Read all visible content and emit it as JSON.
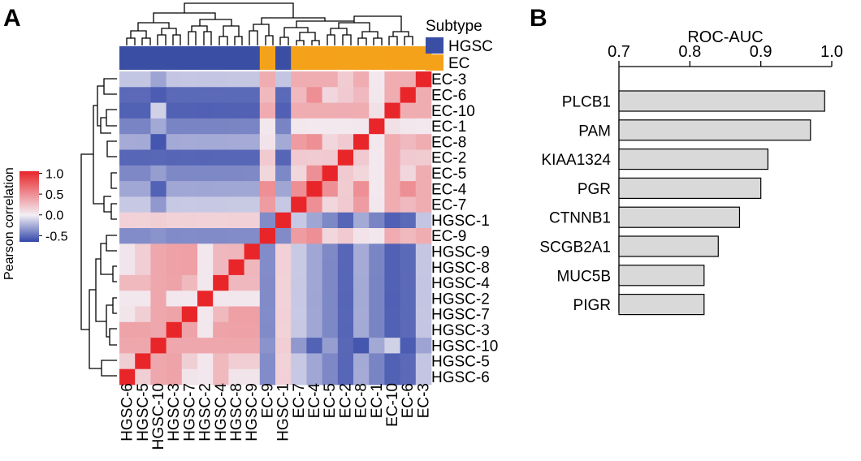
{
  "panels": {
    "a": "A",
    "b": "B"
  },
  "heatmap": {
    "type": "heatmap",
    "rows": [
      "EC-3",
      "EC-6",
      "EC-10",
      "EC-1",
      "EC-8",
      "EC-2",
      "EC-5",
      "EC-4",
      "EC-7",
      "HGSC-1",
      "EC-9",
      "HGSC-9",
      "HGSC-8",
      "HGSC-4",
      "HGSC-2",
      "HGSC-7",
      "HGSC-3",
      "HGSC-10",
      "HGSC-5",
      "HGSC-6"
    ],
    "columns": [
      "HGSC-6",
      "HGSC-5",
      "HGSC-10",
      "HGSC-3",
      "HGSC-7",
      "HGSC-2",
      "HGSC-4",
      "HGSC-8",
      "HGSC-9",
      "EC-9",
      "HGSC-1",
      "EC-7",
      "EC-4",
      "EC-5",
      "EC-2",
      "EC-8",
      "EC-1",
      "EC-10",
      "EC-6",
      "EC-3"
    ],
    "column_subtype": [
      "HGSC",
      "HGSC",
      "HGSC",
      "HGSC",
      "HGSC",
      "HGSC",
      "HGSC",
      "HGSC",
      "HGSC",
      "EC",
      "HGSC",
      "EC",
      "EC",
      "EC",
      "EC",
      "EC",
      "EC",
      "EC",
      "EC",
      "EC"
    ],
    "subtype_legend": {
      "title": "Subtype",
      "items": [
        {
          "label": "HGSC",
          "color": "#3a4fa3"
        },
        {
          "label": "EC",
          "color": "#f5a21b"
        }
      ]
    },
    "colorbar": {
      "title": "Pearson correlation",
      "ticks": [
        "1.0",
        "0.5",
        "0.0",
        "-0.5"
      ],
      "tick_values": [
        1.0,
        0.5,
        0.0,
        -0.5
      ],
      "range": [
        -0.65,
        1.05
      ],
      "low_color": "#3346a8",
      "mid_color": "#f2eff5",
      "high_color": "#e8262a"
    }
  },
  "chart_data": {
    "type": "bar",
    "orientation": "horizontal",
    "title": "ROC-AUC",
    "categories": [
      "PLCB1",
      "PAM",
      "KIAA1324",
      "PGR",
      "CTNNB1",
      "SCGB2A1",
      "MUC5B",
      "PIGR"
    ],
    "values": [
      0.99,
      0.97,
      0.91,
      0.9,
      0.87,
      0.84,
      0.82,
      0.82
    ],
    "xlim": [
      0.7,
      1.0
    ],
    "ticks": [
      "0.7",
      "0.8",
      "0.9",
      "1.0"
    ],
    "tick_values": [
      0.7,
      0.8,
      0.9,
      1.0
    ],
    "bar_color": "#d9d9d9",
    "axis_position": "top"
  }
}
